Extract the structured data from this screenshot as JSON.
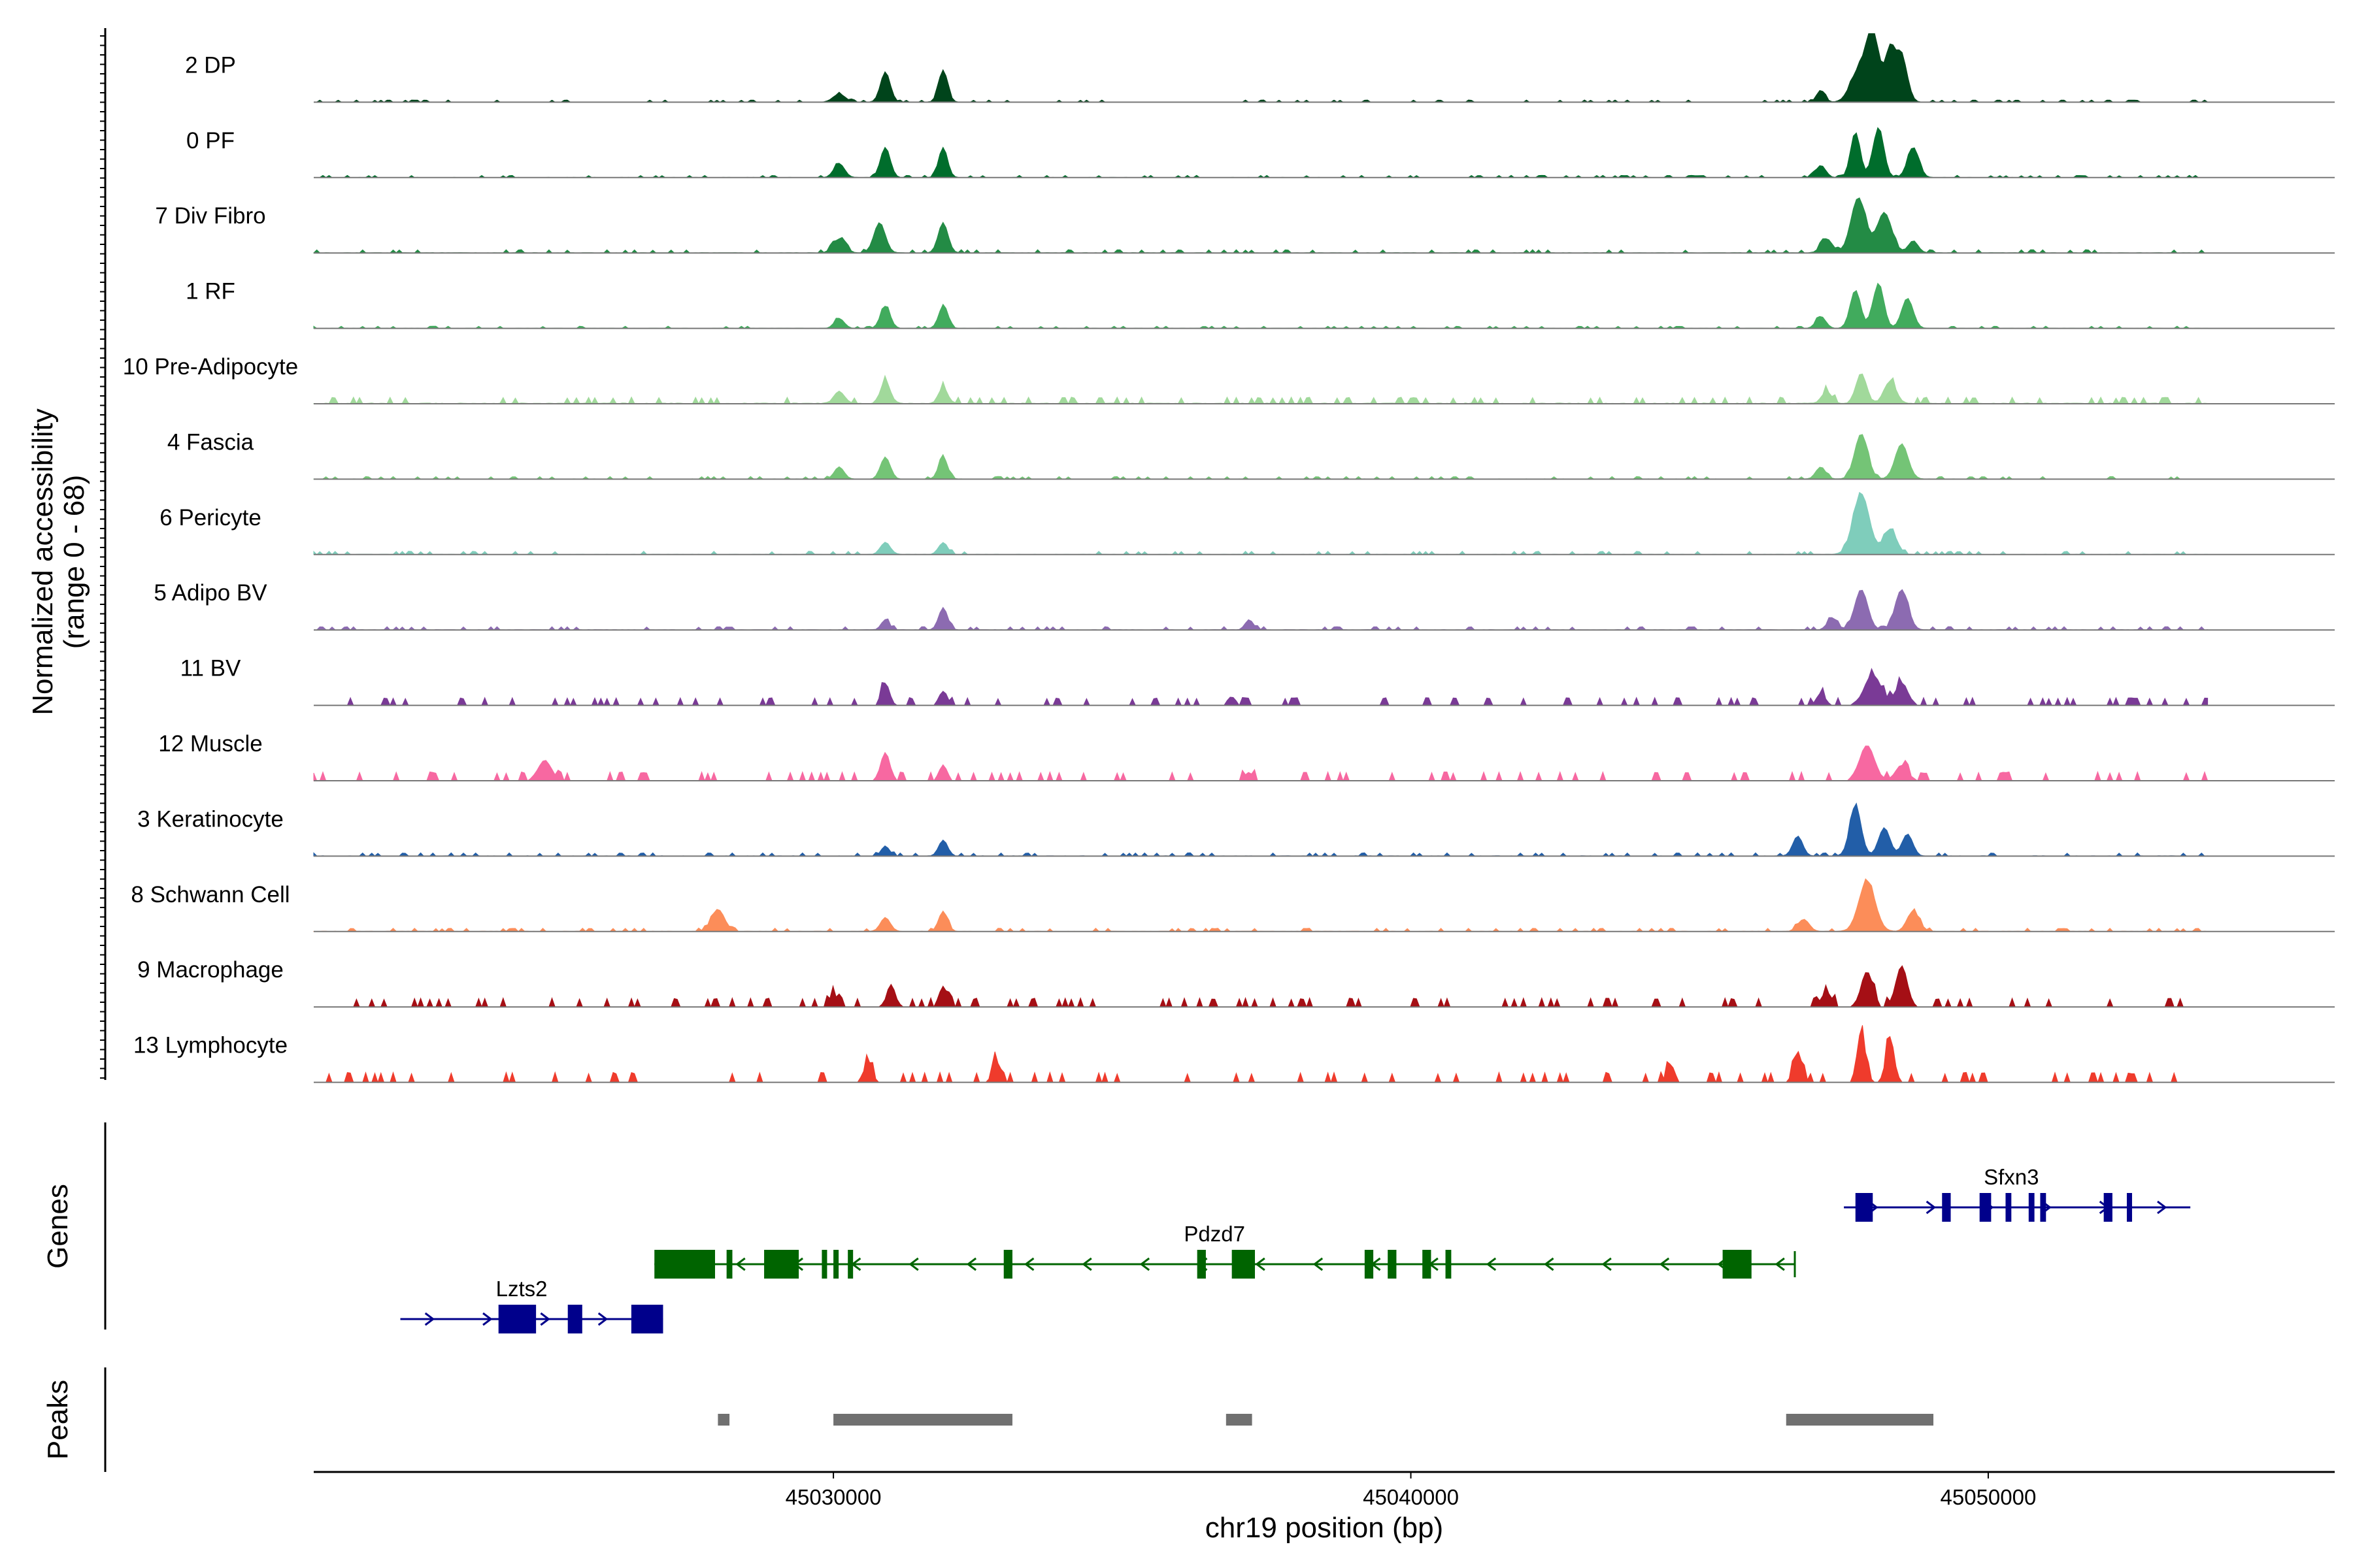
{
  "chart_data": {
    "type": "area",
    "title": "",
    "xlabel": "chr19 position (bp)",
    "ylabel_line1": "Normalized accessibility",
    "ylabel_line2": "(range 0 - 68)",
    "ylim": [
      0,
      68
    ],
    "xlim": [
      45021000,
      45056000
    ],
    "x_ticks": [
      45030000,
      45040000,
      45050000
    ],
    "x_tick_labels": [
      "45030000",
      "45040000",
      "45050000"
    ],
    "genes_label": "Genes",
    "peaks_label": "Peaks",
    "tracks": [
      {
        "name": "2 DP",
        "color": "#00441b",
        "peaks": [
          [
            45030100,
            8,
            150
          ],
          [
            45030900,
            30,
            120
          ],
          [
            45031900,
            32,
            110
          ],
          [
            45047750,
            30,
            200
          ],
          [
            45048000,
            68,
            160
          ],
          [
            45048300,
            50,
            120
          ],
          [
            45048500,
            45,
            140
          ],
          [
            45047100,
            12,
            100
          ]
        ],
        "noise": 1.0,
        "hollow": false
      },
      {
        "name": "0 PF",
        "color": "#006d2c",
        "peaks": [
          [
            45030100,
            14,
            130
          ],
          [
            45030900,
            30,
            120
          ],
          [
            45031900,
            30,
            110
          ],
          [
            45047100,
            12,
            120
          ],
          [
            45047700,
            45,
            120
          ],
          [
            45048100,
            50,
            130
          ],
          [
            45048700,
            30,
            140
          ]
        ],
        "noise": 1.0,
        "hollow": false
      },
      {
        "name": "7 Div Fibro",
        "color": "#238b45",
        "peaks": [
          [
            45030100,
            14,
            150
          ],
          [
            45030800,
            30,
            140
          ],
          [
            45031900,
            30,
            120
          ],
          [
            45047200,
            14,
            140
          ],
          [
            45047750,
            55,
            180
          ],
          [
            45048200,
            40,
            180
          ],
          [
            45048700,
            12,
            120
          ]
        ],
        "noise": 1.5,
        "hollow": false
      },
      {
        "name": "1 RF",
        "color": "#41ab5d",
        "peaks": [
          [
            45030100,
            10,
            120
          ],
          [
            45030900,
            22,
            120
          ],
          [
            45031900,
            22,
            110
          ],
          [
            45047100,
            12,
            120
          ],
          [
            45047700,
            38,
            130
          ],
          [
            45048100,
            45,
            130
          ],
          [
            45048600,
            30,
            140
          ]
        ],
        "noise": 1.0,
        "hollow": false
      },
      {
        "name": "10 Pre-Adipocyte",
        "color": "#a1d99b",
        "peaks": [
          [
            45030100,
            12,
            130
          ],
          [
            45030900,
            22,
            120
          ],
          [
            45031900,
            16,
            110
          ],
          [
            45047200,
            12,
            120
          ],
          [
            45047800,
            30,
            130
          ],
          [
            45048300,
            22,
            150
          ]
        ],
        "noise": 3.0,
        "hollow": false
      },
      {
        "name": "4 Fascia",
        "color": "#74c476",
        "peaks": [
          [
            45030100,
            12,
            120
          ],
          [
            45030900,
            22,
            120
          ],
          [
            45031900,
            22,
            110
          ],
          [
            45047100,
            12,
            120
          ],
          [
            45047800,
            45,
            160
          ],
          [
            45048500,
            35,
            160
          ]
        ],
        "noise": 1.2,
        "hollow": false
      },
      {
        "name": "6 Pericyte",
        "color": "#7fcdbb",
        "peaks": [
          [
            45030900,
            12,
            120
          ],
          [
            45031900,
            12,
            110
          ],
          [
            45047800,
            60,
            200
          ],
          [
            45048300,
            25,
            160
          ]
        ],
        "noise": 1.5,
        "hollow": false
      },
      {
        "name": "5 Adipo BV",
        "color": "#8c6bb1",
        "peaks": [
          [
            45031900,
            22,
            110
          ],
          [
            45030900,
            10,
            100
          ],
          [
            45047800,
            40,
            160
          ],
          [
            45048500,
            40,
            160
          ],
          [
            45037200,
            10,
            100
          ],
          [
            45047300,
            12,
            120
          ]
        ],
        "noise": 1.5,
        "hollow": false
      },
      {
        "name": "11 BV",
        "color": "#7a3a96",
        "peaks": [
          [
            45030900,
            22,
            100
          ],
          [
            45031900,
            14,
            100
          ],
          [
            45048000,
            30,
            200
          ],
          [
            45048500,
            22,
            150
          ],
          [
            45036900,
            8,
            100
          ],
          [
            45047100,
            12,
            100
          ]
        ],
        "noise": 3.5,
        "hollow": true
      },
      {
        "name": "12 Muscle",
        "color": "#f768a1",
        "peaks": [
          [
            45025000,
            20,
            160
          ],
          [
            45030900,
            28,
            110
          ],
          [
            45031900,
            15,
            100
          ],
          [
            45047900,
            35,
            180
          ],
          [
            45048500,
            15,
            150
          ],
          [
            45037200,
            8,
            100
          ]
        ],
        "noise": 4.0,
        "hollow": true
      },
      {
        "name": "3 Keratinocyte",
        "color": "#225ea8",
        "peaks": [
          [
            45047700,
            50,
            140
          ],
          [
            45048200,
            28,
            140
          ],
          [
            45048600,
            22,
            130
          ],
          [
            45046700,
            20,
            120
          ],
          [
            45031900,
            16,
            110
          ],
          [
            45030900,
            10,
            100
          ]
        ],
        "noise": 1.5,
        "hollow": false
      },
      {
        "name": "8 Schwann Cell",
        "color": "#fc8d59",
        "peaks": [
          [
            45028000,
            22,
            160
          ],
          [
            45030900,
            14,
            120
          ],
          [
            45031900,
            20,
            110
          ],
          [
            45047900,
            50,
            200
          ],
          [
            45048700,
            20,
            150
          ],
          [
            45046800,
            12,
            140
          ]
        ],
        "noise": 1.5,
        "hollow": false
      },
      {
        "name": "9 Macrophage",
        "color": "#a50f15",
        "peaks": [
          [
            45031000,
            22,
            100
          ],
          [
            45031900,
            20,
            100
          ],
          [
            45047900,
            35,
            140
          ],
          [
            45048500,
            40,
            140
          ],
          [
            45047200,
            14,
            130
          ],
          [
            45030000,
            12,
            100
          ]
        ],
        "noise": 4.0,
        "hollow": true
      },
      {
        "name": "13 Lymphocyte",
        "color": "#ef3b2c",
        "peaks": [
          [
            45030600,
            20,
            100
          ],
          [
            45032800,
            30,
            70
          ],
          [
            45044500,
            18,
            90
          ],
          [
            45046700,
            30,
            100
          ],
          [
            45047800,
            50,
            100
          ],
          [
            45048300,
            45,
            100
          ]
        ],
        "noise": 4.5,
        "hollow": true
      }
    ],
    "genes": [
      {
        "name": "Sfxn3",
        "color": "#00008b",
        "strand": "+",
        "row": 0,
        "start": 45047500,
        "end": 45053500,
        "exons": [
          [
            45047700,
            45048000
          ],
          [
            45049200,
            45049350
          ],
          [
            45049850,
            45050050
          ],
          [
            45050300,
            45050400
          ],
          [
            45050700,
            45050800
          ],
          [
            45050900,
            45051000
          ],
          [
            45052000,
            45052150
          ],
          [
            45052400,
            45052480
          ]
        ]
      },
      {
        "name": "Pdzd7",
        "color": "#006400",
        "strand": "-",
        "row": 1,
        "start": 45026900,
        "end": 45046650,
        "exons": [
          [
            45026900,
            45027950
          ],
          [
            45028150,
            45028250
          ],
          [
            45028800,
            45029400
          ],
          [
            45029800,
            45029850
          ],
          [
            45030000,
            45030080
          ],
          [
            45030250,
            45030300
          ],
          [
            45032950,
            45033100
          ],
          [
            45036300,
            45036450
          ],
          [
            45036900,
            45037300
          ],
          [
            45039200,
            45039350
          ],
          [
            45039600,
            45039750
          ],
          [
            45040200,
            45040350
          ],
          [
            45040600,
            45040700
          ],
          [
            45045400,
            45045900
          ]
        ]
      },
      {
        "name": "Lzts2",
        "color": "#00008b",
        "strand": "+",
        "row": 2,
        "start": 45022500,
        "end": 45027050,
        "exons": [
          [
            45024200,
            45024850
          ],
          [
            45025400,
            45025650
          ],
          [
            45026500,
            45027050
          ]
        ]
      }
    ],
    "peaks": [
      [
        45028000,
        45028200
      ],
      [
        45030000,
        45033100
      ],
      [
        45036800,
        45037250
      ],
      [
        45046500,
        45049050
      ]
    ]
  }
}
